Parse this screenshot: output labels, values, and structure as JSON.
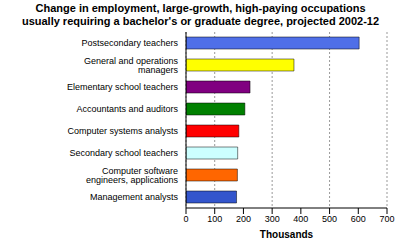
{
  "chart_data": {
    "type": "bar",
    "title": "Change in employment, large-growth, high-paying occupations\nusually requiring a bachelor's or graduate degree, projected 2002-12",
    "categories": [
      "Postsecondary teachers",
      "General and operations managers",
      "Elementary school teachers",
      "Accountants and auditors",
      "Computer systems analysts",
      "Secondary school teachers",
      "Computer software engineers, applications",
      "Management analysts"
    ],
    "values": [
      603,
      376,
      223,
      205,
      184,
      180,
      179,
      176
    ],
    "colors": [
      "#4f6fe8",
      "#ffff00",
      "#800080",
      "#008000",
      "#ff0000",
      "#ccffff",
      "#ff6600",
      "#3355cc"
    ],
    "orientation": "horizontal",
    "xlabel": "Thousands",
    "xlim": [
      0,
      700
    ],
    "xticks": [
      0,
      100,
      200,
      300,
      400,
      500,
      600,
      700
    ],
    "grid": true
  }
}
